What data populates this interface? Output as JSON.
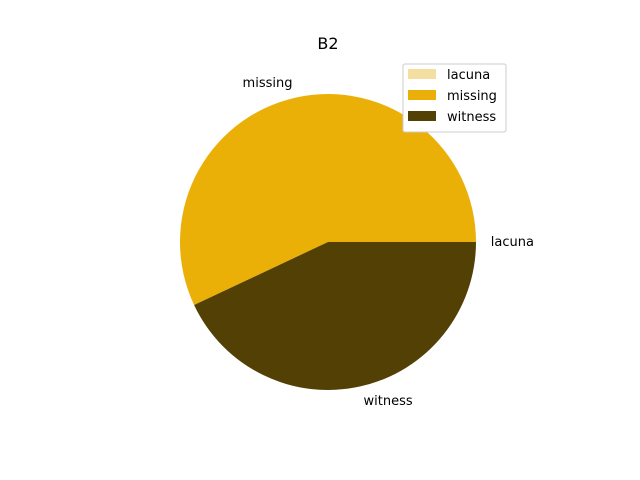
{
  "chart_data": {
    "type": "pie",
    "title": "B2",
    "categories": [
      "lacuna",
      "missing",
      "witness"
    ],
    "values": [
      0,
      57,
      43
    ],
    "colors": [
      "#f5dfa0",
      "#ebb007",
      "#524004"
    ],
    "start_angle_deg": 0,
    "direction": "counterclockwise",
    "legend": {
      "position": "top-right",
      "entries": [
        "lacuna",
        "missing",
        "witness"
      ]
    }
  }
}
